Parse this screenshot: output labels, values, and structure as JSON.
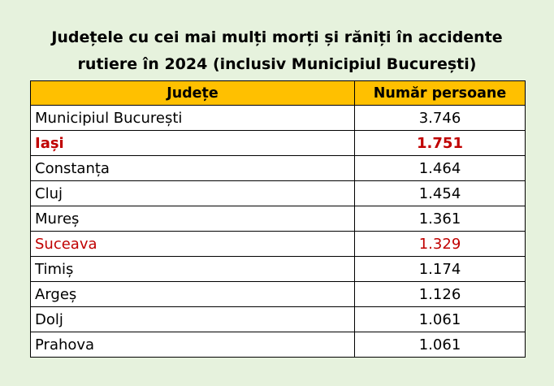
{
  "title": {
    "line1": "Județele cu cei mai mulți morți și răniți în accidente",
    "line2": "rutiere în 2024 (inclusiv Municipiul București)"
  },
  "table": {
    "headers": [
      "Județe",
      "Număr persoane"
    ],
    "header_color": "#ffc000",
    "highlight_color": "#c00000",
    "rows": [
      {
        "name": "Municipiul București",
        "value": "3.746",
        "style": "normal"
      },
      {
        "name": "Iași",
        "value": "1.751",
        "style": "bold-red"
      },
      {
        "name": "Constanța",
        "value": "1.464",
        "style": "normal"
      },
      {
        "name": "Cluj",
        "value": "1.454",
        "style": "normal"
      },
      {
        "name": "Mureș",
        "value": "1.361",
        "style": "normal"
      },
      {
        "name": "Suceava",
        "value": "1.329",
        "style": "red"
      },
      {
        "name": "Timiș",
        "value": "1.174",
        "style": "normal"
      },
      {
        "name": "Argeș",
        "value": "1.126",
        "style": "normal"
      },
      {
        "name": "Dolj",
        "value": "1.061",
        "style": "normal"
      },
      {
        "name": "Prahova",
        "value": "1.061",
        "style": "normal"
      }
    ]
  }
}
